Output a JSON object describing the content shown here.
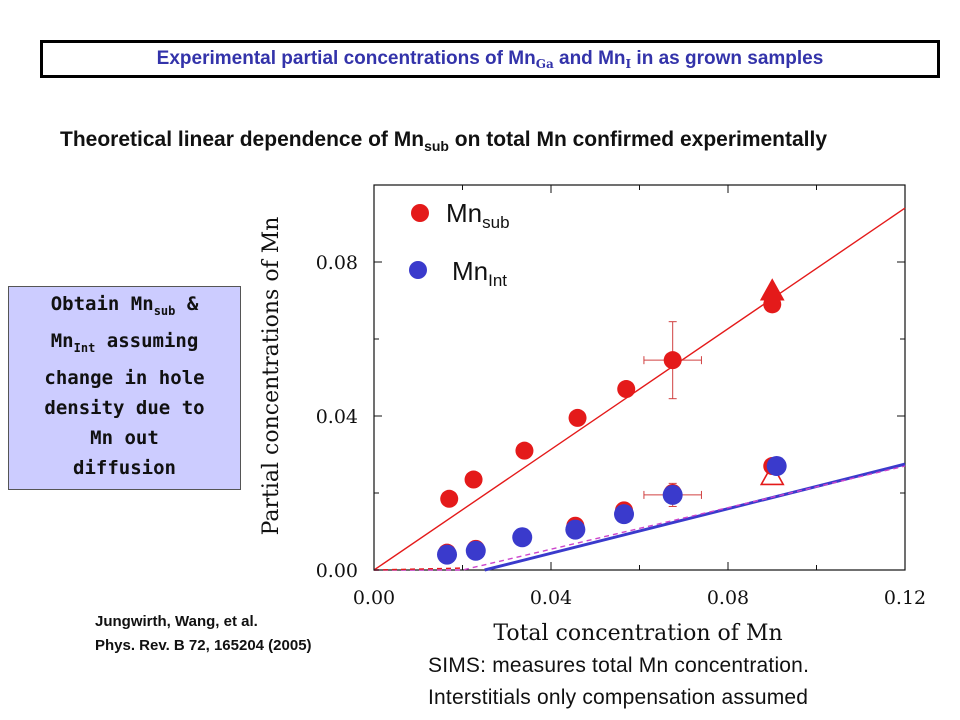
{
  "header": {
    "title_part1": "Experimental partial concentrations of Mn",
    "title_sub1": "Ga",
    "title_part2": " and Mn",
    "title_sub2": "I",
    "title_part3": " in as grown samples"
  },
  "subtitle": {
    "part1": "Theoretical linear dependence of Mn",
    "sub": "sub",
    "part2": " on total Mn confirmed experimentally"
  },
  "note": {
    "l1a": "Obtain Mn",
    "l1sub": "sub",
    "l1b": " &",
    "l2a": "Mn",
    "l2sub": "Int",
    "l2b": " assuming",
    "l3": "change in hole",
    "l4": "density due to",
    "l5": "Mn out",
    "l6": "diffusion"
  },
  "citation": {
    "line1": "Jungwirth, Wang, et al.",
    "line2": "Phys. Rev. B 72, 165204 (2005)"
  },
  "sims": {
    "line1": "SIMS: measures total Mn concentration.",
    "line2": "Interstitials only compensation assumed"
  },
  "colors": {
    "title": "#3333aa",
    "red": "#e41a1a",
    "blue": "#3a3acc",
    "note_bg": "#ccccff"
  },
  "chart_data": {
    "type": "scatter",
    "xlabel": "Total concentration of Mn",
    "ylabel": "Partial concentrations of Mn",
    "xlim": [
      0,
      0.12
    ],
    "ylim": [
      0,
      0.1
    ],
    "xticks": [
      "0.00",
      "0.04",
      "0.08",
      "0.12"
    ],
    "yticks": [
      "0.00",
      "0.04",
      "0.08"
    ],
    "legend": {
      "position": "top-left",
      "sub_name": "Mn",
      "sub_sub": "sub",
      "int_name": "Mn",
      "int_sub": "Int"
    },
    "series": [
      {
        "name": "Mnsub",
        "color": "#e41a1a",
        "x": [
          0.017,
          0.0225,
          0.034,
          0.046,
          0.057,
          0.0675,
          0.09
        ],
        "y": [
          0.0185,
          0.0235,
          0.031,
          0.0395,
          0.047,
          0.0545,
          0.069
        ]
      },
      {
        "name": "MnInt",
        "color": "#3a3acc",
        "x": [
          0.0165,
          0.023,
          0.0335,
          0.0455,
          0.0565,
          0.0675,
          0.091
        ],
        "y": [
          0.004,
          0.005,
          0.0085,
          0.0105,
          0.0145,
          0.0195,
          0.027
        ]
      },
      {
        "name": "MnInt (red, behind)",
        "color": "#e41a1a",
        "x": [
          0.0165,
          0.023,
          0.0455,
          0.0565,
          0.0675,
          0.09
        ],
        "y": [
          0.0045,
          0.0055,
          0.0115,
          0.0155,
          0.02,
          0.027
        ]
      }
    ],
    "error_bars": [
      {
        "x": 0.0675,
        "y": 0.0545,
        "xerr": 0.0065,
        "yerr": 0.01
      },
      {
        "x": 0.0675,
        "y": 0.0195,
        "xerr": 0.0065,
        "yerr": 0.003
      }
    ],
    "markers": [
      {
        "shape": "triangle",
        "filled": true,
        "color": "#e41a1a",
        "x": 0.09,
        "y": 0.0725
      },
      {
        "shape": "triangle",
        "filled": false,
        "color": "#e41a1a",
        "x": 0.09,
        "y": 0.0245
      }
    ],
    "lines": [
      {
        "name": "Mnsub theory",
        "color": "#e41a1a",
        "x": [
          0,
          0.12
        ],
        "y": [
          0,
          0.094
        ]
      },
      {
        "name": "MnInt theory",
        "color": "#3a3acc",
        "x": [
          0.025,
          0.12
        ],
        "y": [
          0,
          0.0275
        ]
      },
      {
        "name": "MnInt theory (dashed)",
        "color": "#cc44cc",
        "dashed": true,
        "x": [
          0,
          0.02,
          0.12
        ],
        "y": [
          0,
          0,
          0.027
        ]
      },
      {
        "name": "low-x dashes",
        "color": "#e41a1a",
        "dashed": true,
        "x": [
          0,
          0.02
        ],
        "y": [
          0,
          0.0005
        ]
      }
    ]
  }
}
